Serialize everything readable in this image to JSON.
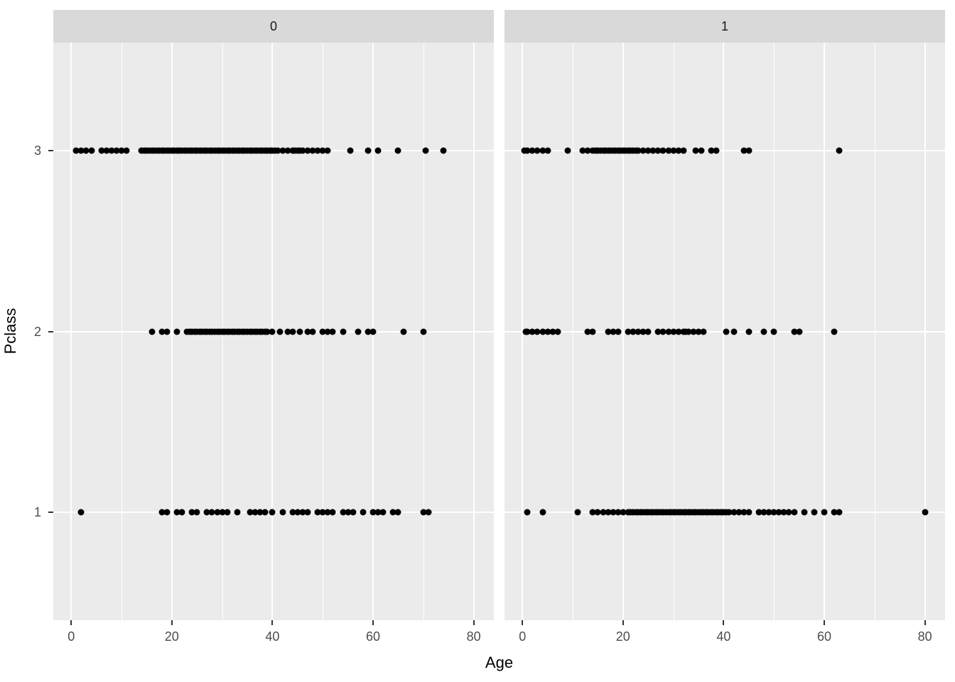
{
  "chart_data": {
    "type": "scatter",
    "title": "",
    "xlabel": "Age",
    "ylabel": "Pclass",
    "facet_labels": [
      "0",
      "1"
    ],
    "x_ticks": [
      0,
      20,
      40,
      60,
      80
    ],
    "x_minor_ticks": [
      10,
      30,
      50,
      70
    ],
    "y_ticks": [
      3,
      2,
      1
    ],
    "x_range": [
      -3.56,
      84
    ],
    "y_range": [
      0.4,
      3.6
    ],
    "grid": true,
    "legend": false,
    "marker_color": "#000000",
    "panel_bg": "#ebebeb",
    "strip_bg": "#d9d9d9",
    "tick_label_color": "#4d4d4d",
    "facets": [
      {
        "label": "0",
        "series": [
          {
            "pclass": 3,
            "ages": [
              1,
              2,
              3,
              4,
              6,
              7,
              8,
              9,
              10,
              11,
              14,
              14.5,
              15,
              15.5,
              16,
              16.5,
              17,
              17.5,
              18,
              18.5,
              19,
              19.5,
              20,
              20.5,
              21,
              21.5,
              22,
              22.5,
              23,
              23.5,
              24,
              24.5,
              25,
              25.5,
              26,
              26.5,
              27,
              27.5,
              28,
              28.5,
              29,
              29.5,
              30,
              30.5,
              31,
              31.5,
              32,
              32.5,
              33,
              33.5,
              34,
              34.5,
              35,
              35.5,
              36,
              36.5,
              37,
              37.5,
              38,
              38.5,
              39,
              39.5,
              40,
              40.5,
              41,
              42,
              43,
              44,
              44.5,
              45,
              45.5,
              46,
              47,
              48,
              49,
              50,
              51,
              55.5,
              59,
              61,
              65,
              70.5,
              74
            ]
          },
          {
            "pclass": 2,
            "ages": [
              16,
              18,
              19,
              21,
              23,
              23.5,
              24,
              24.5,
              25,
              25.5,
              26,
              26.5,
              27,
              27.5,
              28,
              28.5,
              29,
              29.5,
              30,
              30.5,
              31,
              31.5,
              32,
              32.5,
              33,
              33.5,
              34,
              34.5,
              35,
              35.5,
              36,
              36.5,
              37,
              37.5,
              38,
              38.5,
              39,
              40,
              41.5,
              43,
              44,
              45.5,
              47,
              48,
              50,
              51,
              52,
              54,
              57,
              59,
              60,
              66,
              70
            ]
          },
          {
            "pclass": 1,
            "ages": [
              2,
              18,
              19,
              21,
              22,
              24,
              25,
              27,
              28,
              29,
              30,
              31,
              33,
              35.5,
              36.5,
              37.5,
              38.5,
              40,
              42,
              44,
              45,
              46,
              47,
              49,
              50,
              51,
              52,
              54,
              55,
              56,
              58,
              60,
              61,
              62,
              64,
              65,
              70,
              71
            ]
          }
        ]
      },
      {
        "label": "1",
        "series": [
          {
            "pclass": 3,
            "ages": [
              0.42,
              1,
              2,
              3,
              4,
              5,
              9,
              12,
              13,
              14,
              14.5,
              15,
              15.5,
              16,
              16.5,
              17,
              17.5,
              18,
              18.5,
              19,
              19.5,
              20,
              20.5,
              21,
              21.5,
              22,
              22.5,
              23,
              24,
              25,
              26,
              27,
              28,
              29,
              30,
              31,
              32,
              34.5,
              35.5,
              37.5,
              38.5,
              44,
              45,
              63
            ]
          },
          {
            "pclass": 2,
            "ages": [
              0.67,
              1,
              2,
              3,
              4,
              5,
              6,
              7,
              13,
              14,
              17,
              18,
              19,
              21,
              22,
              23,
              24,
              25,
              27,
              28,
              29,
              30,
              31,
              32,
              32.5,
              33,
              34,
              35,
              36,
              40.5,
              42,
              45,
              48,
              50,
              54,
              55,
              62
            ]
          },
          {
            "pclass": 1,
            "ages": [
              0.92,
              4,
              11,
              14,
              15,
              16,
              17,
              18,
              19,
              20,
              21,
              21.5,
              22,
              22.5,
              23,
              23.5,
              24,
              24.5,
              25,
              25.5,
              26,
              26.5,
              27,
              27.5,
              28,
              28.5,
              29,
              29.5,
              30,
              30.5,
              31,
              31.5,
              32,
              32.5,
              33,
              33.5,
              34,
              34.5,
              35,
              35.5,
              36,
              36.5,
              37,
              37.5,
              38,
              38.5,
              39,
              39.5,
              40,
              40.5,
              41,
              42,
              43,
              44,
              45,
              47,
              48,
              49,
              50,
              51,
              52,
              53,
              54,
              56,
              58,
              60,
              62,
              63,
              80
            ]
          }
        ]
      }
    ]
  }
}
